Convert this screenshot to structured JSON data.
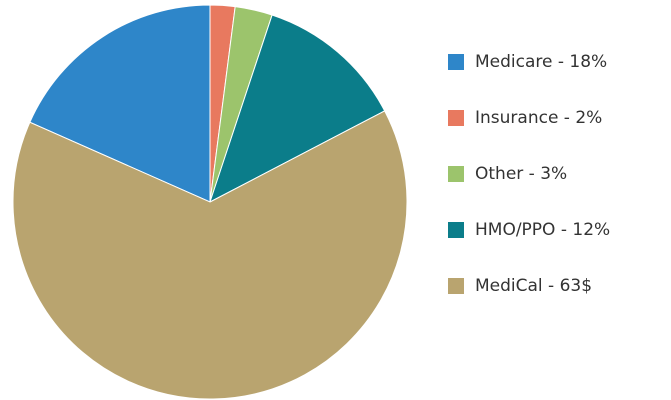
{
  "chart_data": {
    "type": "pie",
    "categories": [
      "Medicare - 18%",
      "Insurance - 2%",
      "Other - 3%",
      "HMO/PPO - 12%",
      "MediCal - 63$"
    ],
    "values": [
      18,
      2,
      3,
      12,
      63
    ],
    "colors": [
      "#2e86c9",
      "#e8795f",
      "#9cc46c",
      "#0b7d8a",
      "#b9a46f"
    ],
    "legend": "right"
  }
}
